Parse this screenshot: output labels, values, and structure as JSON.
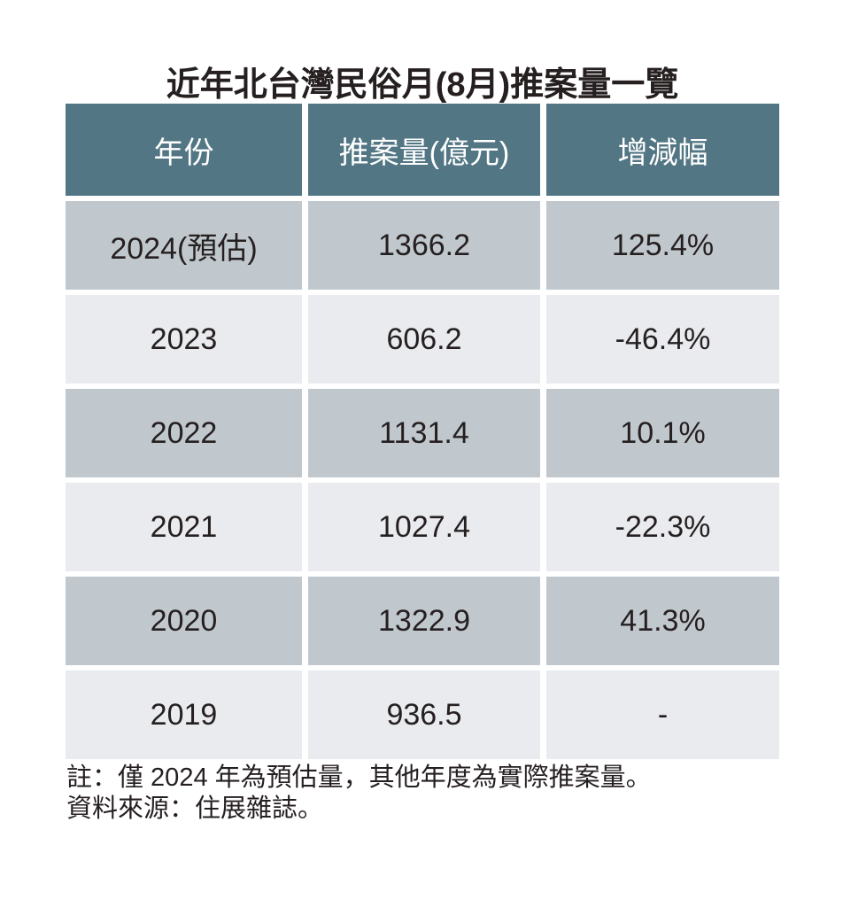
{
  "title": "近年北台灣民俗月(8月)推案量一覽",
  "chart_data": {
    "type": "table",
    "title": "近年北台灣民俗月(8月)推案量一覽",
    "columns": [
      "年份",
      "推案量(億元)",
      "增減幅"
    ],
    "rows": [
      [
        "2024(預估)",
        "1366.2",
        "125.4%"
      ],
      [
        "2023",
        "606.2",
        "-46.4%"
      ],
      [
        "2022",
        "1131.4",
        "10.1%"
      ],
      [
        "2021",
        "1027.4",
        "-22.3%"
      ],
      [
        "2020",
        "1322.9",
        "41.3%"
      ],
      [
        "2019",
        "936.5",
        "-"
      ]
    ],
    "unit": "億元",
    "notes": [
      "註：僅 2024 年為預估量，其他年度為實際推案量。",
      "資料來源：住展雜誌。"
    ]
  },
  "notes": {
    "line1": "註：僅 2024 年為預估量，其他年度為實際推案量。",
    "line2": "資料來源：住展雜誌。"
  },
  "colors": {
    "header_bg": "#527683",
    "header_text": "#ffffff",
    "row_dark": "#c0c8cd",
    "row_light": "#e9ebee",
    "text": "#251f20"
  }
}
